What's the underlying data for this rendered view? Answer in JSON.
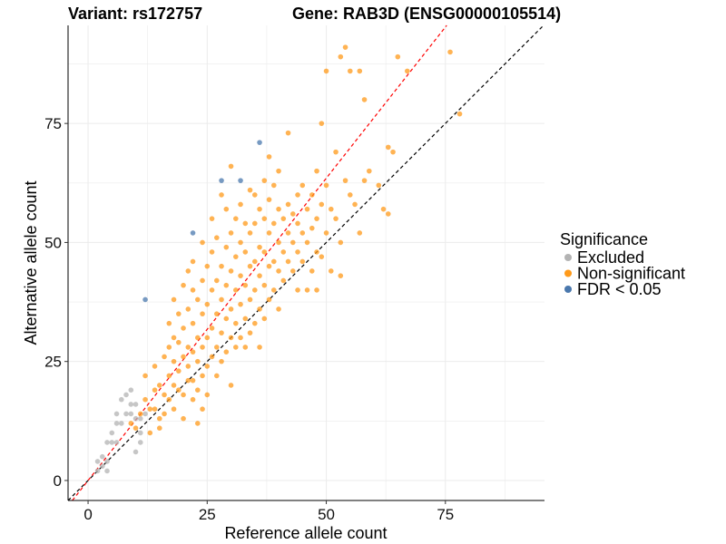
{
  "chart_data": {
    "type": "scatter",
    "title_left": "Variant: rs172757",
    "title_right": "Gene: RAB3D (ENSG00000105514)",
    "xlabel": "Reference allele count",
    "ylabel": "Alternative allele count",
    "xlim": [
      -4.2,
      95.8
    ],
    "ylim": [
      -4.2,
      95.6
    ],
    "xticks": [
      0,
      25,
      50,
      75
    ],
    "yticks": [
      0,
      25,
      50,
      75
    ],
    "grid": true,
    "legend": {
      "title": "Significance",
      "placement": "right",
      "entries": [
        {
          "label": "Excluded",
          "color": "#b3b3b3"
        },
        {
          "label": "Non-significant",
          "color": "#ff9a1a"
        },
        {
          "label": "FDR < 0.05",
          "color": "#4a78ad"
        }
      ]
    },
    "reference_lines": [
      {
        "slope": 1,
        "color": "#000000",
        "style": "dashed"
      },
      {
        "slope": 1.27,
        "color": "#ff0000",
        "style": "dashed"
      }
    ],
    "series": [
      {
        "name": "Excluded",
        "color": "#b3b3b3",
        "points": [
          [
            2,
            2
          ],
          [
            2,
            4
          ],
          [
            3,
            3
          ],
          [
            3,
            5
          ],
          [
            4,
            2
          ],
          [
            4,
            4
          ],
          [
            5,
            8
          ],
          [
            5,
            10
          ],
          [
            6,
            14
          ],
          [
            6,
            8
          ],
          [
            7,
            12
          ],
          [
            7,
            17
          ],
          [
            8,
            18
          ],
          [
            8,
            14
          ],
          [
            9,
            19
          ],
          [
            9,
            14
          ],
          [
            10,
            16
          ],
          [
            10,
            6
          ],
          [
            11,
            8
          ],
          [
            11,
            13
          ],
          [
            12,
            14
          ],
          [
            9,
            16
          ],
          [
            4,
            8
          ],
          [
            6,
            12
          ],
          [
            10,
            13
          ],
          [
            11,
            10
          ]
        ]
      },
      {
        "name": "Non-significant",
        "color": "#ff9a1a",
        "points": [
          [
            9,
            12
          ],
          [
            10,
            11
          ],
          [
            11,
            14
          ],
          [
            12,
            17
          ],
          [
            12,
            22
          ],
          [
            13,
            10
          ],
          [
            13,
            15
          ],
          [
            14,
            15
          ],
          [
            14,
            19
          ],
          [
            14,
            24
          ],
          [
            15,
            20
          ],
          [
            15,
            13
          ],
          [
            15,
            11
          ],
          [
            16,
            26
          ],
          [
            16,
            18
          ],
          [
            16,
            14
          ],
          [
            17,
            22
          ],
          [
            17,
            17
          ],
          [
            17,
            28
          ],
          [
            17,
            33
          ],
          [
            18,
            15
          ],
          [
            18,
            20
          ],
          [
            18,
            25
          ],
          [
            18,
            30
          ],
          [
            18,
            38
          ],
          [
            19,
            23
          ],
          [
            19,
            29
          ],
          [
            19,
            35
          ],
          [
            19,
            19
          ],
          [
            20,
            13
          ],
          [
            20,
            18
          ],
          [
            20,
            26
          ],
          [
            20,
            32
          ],
          [
            20,
            41
          ],
          [
            21,
            21
          ],
          [
            21,
            24
          ],
          [
            21,
            28
          ],
          [
            21,
            36
          ],
          [
            21,
            44
          ],
          [
            22,
            17
          ],
          [
            22,
            21
          ],
          [
            22,
            27
          ],
          [
            22,
            33
          ],
          [
            22,
            40
          ],
          [
            22,
            46
          ],
          [
            23,
            12
          ],
          [
            23,
            19
          ],
          [
            23,
            25
          ],
          [
            23,
            30
          ],
          [
            23,
            38
          ],
          [
            24,
            15
          ],
          [
            24,
            22
          ],
          [
            24,
            28
          ],
          [
            24,
            35
          ],
          [
            24,
            42
          ],
          [
            24,
            50
          ],
          [
            25,
            18
          ],
          [
            25,
            24
          ],
          [
            25,
            30
          ],
          [
            25,
            37
          ],
          [
            25,
            45
          ],
          [
            26,
            26
          ],
          [
            26,
            32
          ],
          [
            26,
            40
          ],
          [
            26,
            48
          ],
          [
            26,
            55
          ],
          [
            27,
            22
          ],
          [
            27,
            28
          ],
          [
            27,
            35
          ],
          [
            27,
            42
          ],
          [
            27,
            51
          ],
          [
            28,
            25
          ],
          [
            28,
            31
          ],
          [
            28,
            38
          ],
          [
            28,
            45
          ],
          [
            28,
            60
          ],
          [
            29,
            27
          ],
          [
            29,
            34
          ],
          [
            29,
            41
          ],
          [
            29,
            49
          ],
          [
            29,
            57
          ],
          [
            30,
            20
          ],
          [
            30,
            30
          ],
          [
            30,
            36
          ],
          [
            30,
            44
          ],
          [
            30,
            52
          ],
          [
            30,
            66
          ],
          [
            31,
            28
          ],
          [
            31,
            33
          ],
          [
            31,
            40
          ],
          [
            31,
            47
          ],
          [
            31,
            55
          ],
          [
            32,
            30
          ],
          [
            32,
            37
          ],
          [
            32,
            43
          ],
          [
            32,
            50
          ],
          [
            32,
            58
          ],
          [
            33,
            28
          ],
          [
            33,
            34
          ],
          [
            33,
            41
          ],
          [
            33,
            48
          ],
          [
            33,
            54
          ],
          [
            34,
            31
          ],
          [
            34,
            38
          ],
          [
            34,
            45
          ],
          [
            34,
            52
          ],
          [
            34,
            61
          ],
          [
            35,
            33
          ],
          [
            35,
            40
          ],
          [
            35,
            46
          ],
          [
            35,
            54
          ],
          [
            35,
            60
          ],
          [
            36,
            28
          ],
          [
            36,
            36
          ],
          [
            36,
            43
          ],
          [
            36,
            49
          ],
          [
            36,
            57
          ],
          [
            37,
            34
          ],
          [
            37,
            41
          ],
          [
            37,
            48
          ],
          [
            37,
            55
          ],
          [
            37,
            63
          ],
          [
            38,
            38
          ],
          [
            38,
            45
          ],
          [
            38,
            52
          ],
          [
            38,
            59
          ],
          [
            38,
            68
          ],
          [
            39,
            40
          ],
          [
            39,
            46
          ],
          [
            39,
            54
          ],
          [
            39,
            62
          ],
          [
            40,
            36
          ],
          [
            40,
            44
          ],
          [
            40,
            50
          ],
          [
            40,
            57
          ],
          [
            40,
            65
          ],
          [
            41,
            42
          ],
          [
            41,
            48
          ],
          [
            41,
            55
          ],
          [
            42,
            46
          ],
          [
            42,
            52
          ],
          [
            42,
            58
          ],
          [
            42,
            73
          ],
          [
            43,
            44
          ],
          [
            43,
            50
          ],
          [
            43,
            56
          ],
          [
            44,
            40
          ],
          [
            44,
            48
          ],
          [
            44,
            54
          ],
          [
            44,
            60
          ],
          [
            45,
            46
          ],
          [
            45,
            52
          ],
          [
            45,
            62
          ],
          [
            46,
            40
          ],
          [
            46,
            50
          ],
          [
            46,
            57
          ],
          [
            47,
            44
          ],
          [
            47,
            53
          ],
          [
            47,
            60
          ],
          [
            48,
            40
          ],
          [
            48,
            48
          ],
          [
            48,
            55
          ],
          [
            48,
            65
          ],
          [
            49,
            47
          ],
          [
            49,
            58
          ],
          [
            49,
            75
          ],
          [
            50,
            52
          ],
          [
            50,
            62
          ],
          [
            50,
            86
          ],
          [
            51,
            44
          ],
          [
            51,
            57
          ],
          [
            52,
            55
          ],
          [
            52,
            69
          ],
          [
            53,
            43
          ],
          [
            53,
            50
          ],
          [
            53,
            89
          ],
          [
            54,
            91
          ],
          [
            54,
            63
          ],
          [
            55,
            86
          ],
          [
            55,
            60
          ],
          [
            56,
            58
          ],
          [
            57,
            86
          ],
          [
            57,
            52
          ],
          [
            58,
            80
          ],
          [
            58,
            63
          ],
          [
            59,
            65
          ],
          [
            61,
            62
          ],
          [
            62,
            57
          ],
          [
            63,
            56
          ],
          [
            63,
            70
          ],
          [
            64,
            69
          ],
          [
            65,
            89
          ],
          [
            67,
            86
          ],
          [
            76,
            90
          ],
          [
            78,
            77
          ]
        ]
      },
      {
        "name": "FDR < 0.05",
        "color": "#4a78ad",
        "points": [
          [
            12,
            38
          ],
          [
            22,
            52
          ],
          [
            28,
            63
          ],
          [
            32,
            63
          ],
          [
            36,
            71
          ]
        ]
      }
    ]
  }
}
